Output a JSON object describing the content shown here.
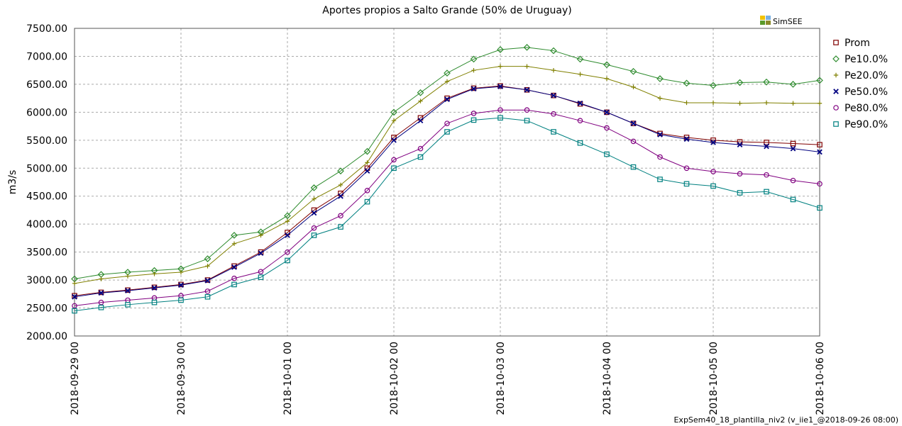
{
  "chart_data": {
    "type": "line",
    "title": "Aportes propios a Salto Grande (50% de Uruguay)",
    "logo": "SimSEE",
    "y_label": "m3/s",
    "footer": "ExpSem40_18_plantilla_niv2 (v_iie1_@2018-09-26 08:00)",
    "x": [
      "2018-09-29 00",
      "2018-09-29 06",
      "2018-09-29 12",
      "2018-09-29 18",
      "2018-09-30 00",
      "2018-09-30 06",
      "2018-09-30 12",
      "2018-09-30 18",
      "2018-10-01 00",
      "2018-10-01 06",
      "2018-10-01 12",
      "2018-10-01 18",
      "2018-10-02 00",
      "2018-10-02 06",
      "2018-10-02 12",
      "2018-10-02 18",
      "2018-10-03 00",
      "2018-10-03 06",
      "2018-10-03 12",
      "2018-10-03 18",
      "2018-10-04 00",
      "2018-10-04 06",
      "2018-10-04 12",
      "2018-10-04 18",
      "2018-10-05 00",
      "2018-10-05 06",
      "2018-10-05 12",
      "2018-10-05 18",
      "2018-10-06 00"
    ],
    "xlim": [
      "2018-09-29 00",
      "2018-10-06 00"
    ],
    "xticks": [
      "2018-09-29 00",
      "2018-09-30 00",
      "2018-10-01 00",
      "2018-10-02 00",
      "2018-10-03 00",
      "2018-10-04 00",
      "2018-10-05 00",
      "2018-10-06 00"
    ],
    "ylim": [
      2000,
      7500
    ],
    "yticks": [
      {
        "value": 2000,
        "label": "2000.00"
      },
      {
        "value": 2500,
        "label": "2500.00"
      },
      {
        "value": 3000,
        "label": "3000.00"
      },
      {
        "value": 3500,
        "label": "3500.00"
      },
      {
        "value": 4000,
        "label": "4000.00"
      },
      {
        "value": 4500,
        "label": "4500.00"
      },
      {
        "value": 5000,
        "label": "5000.00"
      },
      {
        "value": 5500,
        "label": "5500.00"
      },
      {
        "value": 6000,
        "label": "6000.00"
      },
      {
        "value": 6500,
        "label": "6500.00"
      },
      {
        "value": 7000,
        "label": "7000.00"
      },
      {
        "value": 7500,
        "label": "7500.00"
      }
    ],
    "grid": true,
    "legend": "right",
    "series": [
      {
        "name": "Prom",
        "color": "#800000",
        "marker": "square",
        "values": [
          2720,
          2780,
          2820,
          2870,
          2920,
          3000,
          3250,
          3500,
          3850,
          4250,
          4550,
          5000,
          5550,
          5900,
          6250,
          6430,
          6470,
          6400,
          6300,
          6150,
          6000,
          5800,
          5620,
          5550,
          5500,
          5470,
          5460,
          5440,
          5420
        ]
      },
      {
        "name": "Pe10.0%",
        "color": "#2e8b2e",
        "marker": "diamond",
        "values": [
          3020,
          3100,
          3140,
          3170,
          3200,
          3380,
          3800,
          3860,
          4150,
          4650,
          4950,
          5300,
          6000,
          6350,
          6700,
          6950,
          7120,
          7160,
          7100,
          6950,
          6850,
          6730,
          6600,
          6520,
          6480,
          6530,
          6540,
          6500,
          6570
        ]
      },
      {
        "name": "Pe20.0%",
        "color": "#808000",
        "marker": "plus",
        "values": [
          2940,
          3020,
          3070,
          3110,
          3140,
          3250,
          3650,
          3800,
          4050,
          4450,
          4700,
          5100,
          5850,
          6200,
          6550,
          6750,
          6820,
          6820,
          6750,
          6680,
          6600,
          6450,
          6250,
          6170,
          6170,
          6160,
          6170,
          6160,
          6160
        ]
      },
      {
        "name": "Pe50.0%",
        "color": "#000080",
        "marker": "cross",
        "values": [
          2700,
          2770,
          2810,
          2860,
          2910,
          2990,
          3230,
          3480,
          3800,
          4200,
          4500,
          4950,
          5500,
          5850,
          6230,
          6420,
          6460,
          6400,
          6300,
          6160,
          6000,
          5800,
          5600,
          5520,
          5460,
          5420,
          5390,
          5350,
          5290
        ]
      },
      {
        "name": "Pe80.0%",
        "color": "#800080",
        "marker": "circle",
        "values": [
          2540,
          2600,
          2640,
          2680,
          2720,
          2800,
          3030,
          3150,
          3500,
          3930,
          4150,
          4600,
          5150,
          5350,
          5800,
          5980,
          6040,
          6040,
          5970,
          5850,
          5720,
          5480,
          5200,
          5000,
          4940,
          4900,
          4880,
          4780,
          4720
        ]
      },
      {
        "name": "Pe90.0%",
        "color": "#008080",
        "marker": "square",
        "values": [
          2450,
          2510,
          2560,
          2600,
          2640,
          2700,
          2920,
          3050,
          3350,
          3800,
          3950,
          4400,
          5000,
          5200,
          5650,
          5860,
          5900,
          5850,
          5650,
          5450,
          5250,
          5020,
          4800,
          4720,
          4680,
          4560,
          4580,
          4440,
          4290
        ]
      }
    ]
  }
}
